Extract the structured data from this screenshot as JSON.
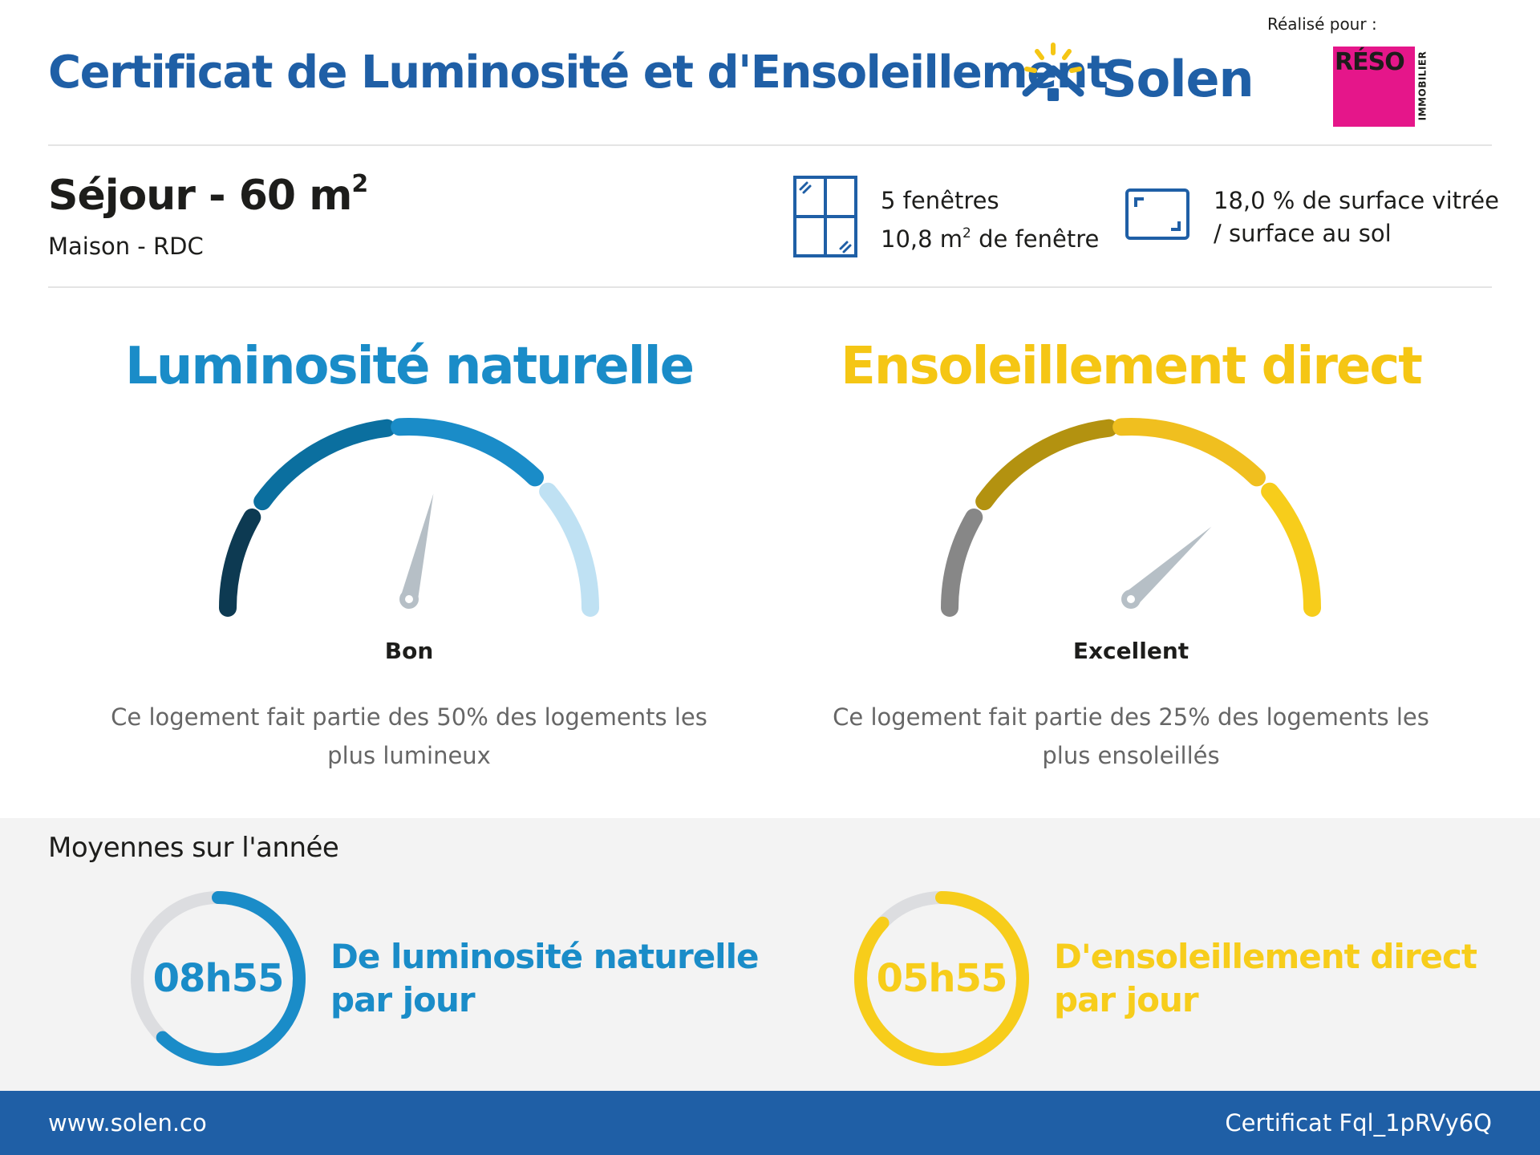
{
  "header": {
    "title": "Certificat de Luminosité et d'Ensoleillement",
    "brand_name": "Solen",
    "realise_pour": "Réalisé pour :",
    "partner": {
      "name": "RÉSO",
      "subtitle": "IMMOBILIER"
    }
  },
  "room": {
    "title": "Séjour - 60 m",
    "title_exponent": "2",
    "subtitle": "Maison - RDC",
    "windows_count": "5 fenêtres",
    "windows_area": "10,8 m",
    "windows_area_exponent": "2",
    "windows_area_suffix": " de fenêtre",
    "glazed_ratio_line1": "18,0 % de surface vitrée",
    "glazed_ratio_line2": "/ surface au sol"
  },
  "gauges": [
    {
      "title": "Luminosité naturelle",
      "rating": "Bon",
      "description": "Ce logement fait partie des 50% des logements les plus lumineux",
      "needle_angle_deg": 77,
      "segment_colors": [
        "#0d3a52",
        "#0b6f9f",
        "#1a8cc8",
        "#bfe1f3"
      ],
      "needle_color": "#b6bfc6",
      "title_color": "#1a8cc8"
    },
    {
      "title": "Ensoleillement direct",
      "rating": "Excellent",
      "description": "Ce logement fait partie des 25% des logements les plus ensoleillés",
      "needle_angle_deg": 42,
      "segment_colors": [
        "#878787",
        "#b39210",
        "#f0bf1f",
        "#f7cd1b"
      ],
      "needle_color": "#b6bfc6",
      "title_color": "#f5c614"
    }
  ],
  "averages": {
    "title": "Moyennes sur l'année",
    "items": [
      {
        "value": "08h55",
        "label_line1": "De luminosité naturelle",
        "label_line2": "par jour",
        "fraction": 0.62,
        "color": "#1a8cc8"
      },
      {
        "value": "05h55",
        "label_line1": "D'ensoleillement direct",
        "label_line2": "par jour",
        "fraction": 0.87,
        "color": "#f7cd1b"
      }
    ]
  },
  "footer": {
    "url": "www.solen.co",
    "certificate": "Certificat Fql_1pRVy6Q"
  }
}
